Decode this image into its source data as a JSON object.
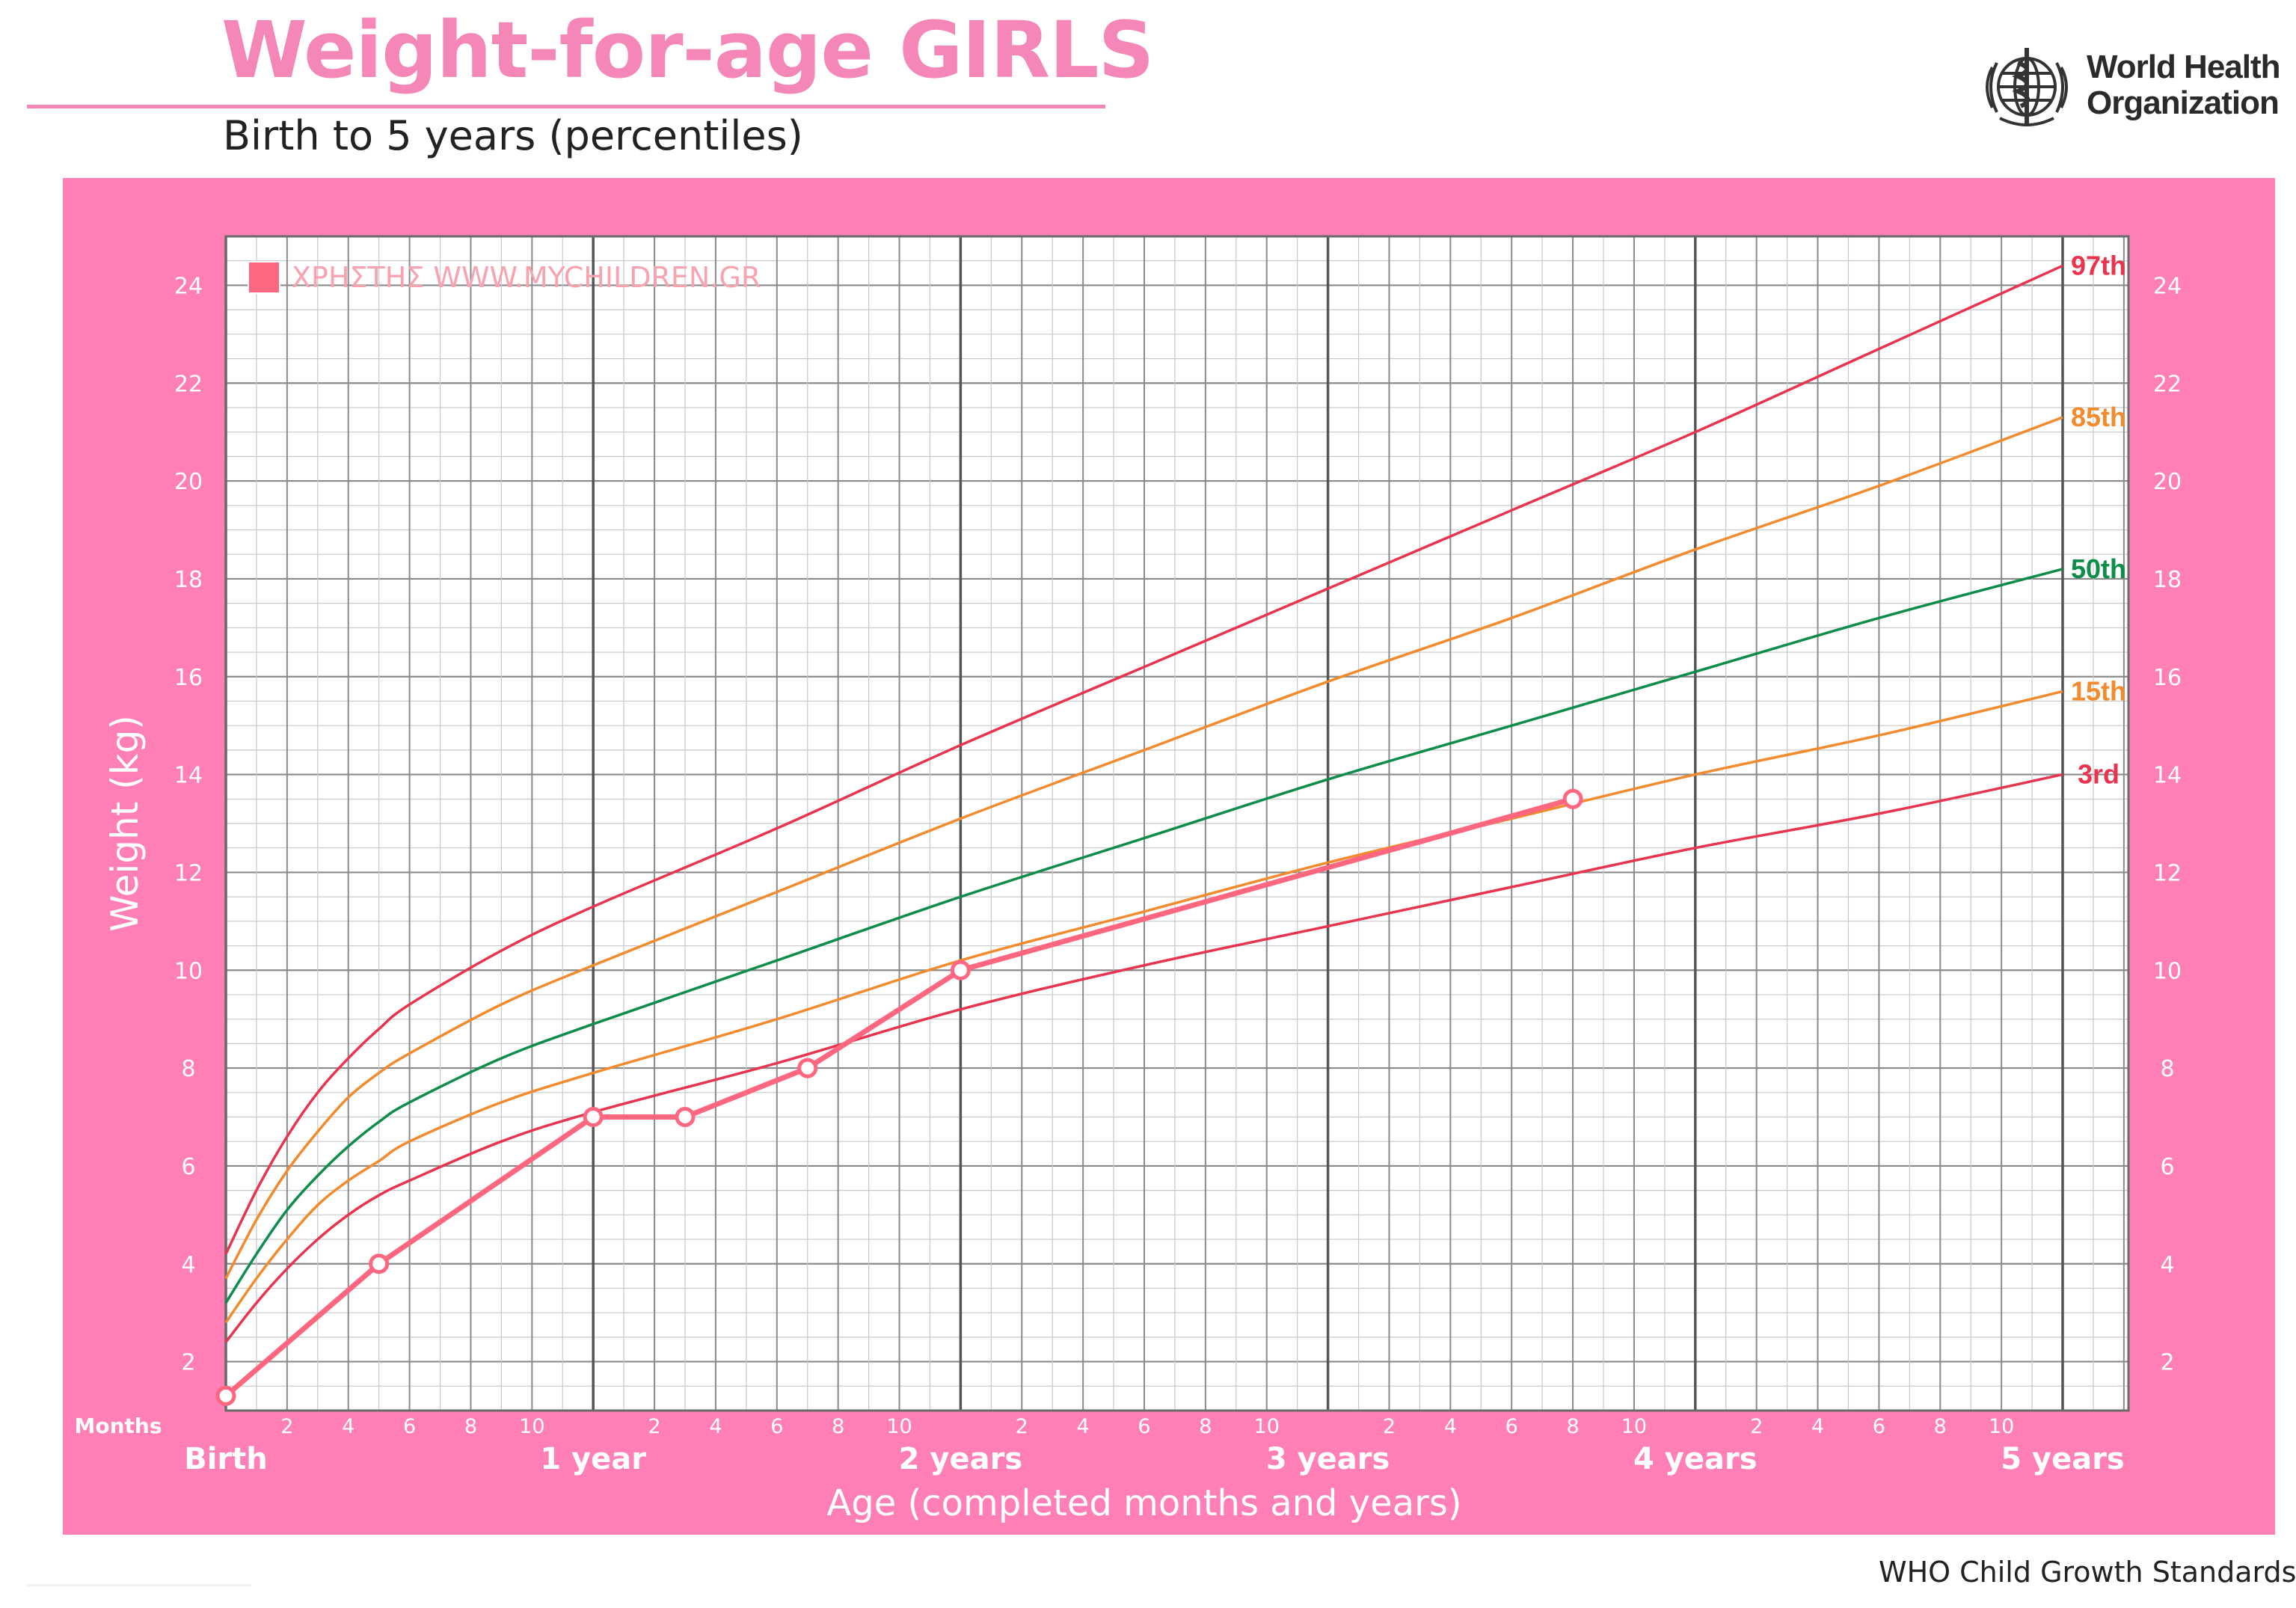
{
  "header": {
    "title": "Weight-for-age GIRLS",
    "subtitle": "Birth to 5 years (percentiles)",
    "org_name_line1": "World Health",
    "org_name_line2": "Organization",
    "logo_icon": "who-emblem-icon"
  },
  "footer": {
    "text": "WHO Child Growth Standards"
  },
  "colors": {
    "brand_pink": "#ff7fb6",
    "title_pink": "#f587b8",
    "p97": "#e8344f",
    "p85": "#f28a2e",
    "p50": "#0e8c4a",
    "p15": "#f28a2e",
    "p3": "#e8344f",
    "child": "#ff6680"
  },
  "chart_data": {
    "type": "line",
    "title": "Weight-for-age GIRLS",
    "subtitle": "Birth to 5 years (percentiles)",
    "xlabel": "Age (completed months and years)",
    "ylabel": "Weight (kg)",
    "xlim": [
      0,
      60
    ],
    "ylim": [
      1,
      25
    ],
    "y_ticks": [
      2,
      4,
      6,
      8,
      10,
      12,
      14,
      16,
      18,
      20,
      22,
      24
    ],
    "x_major_labels": [
      {
        "month": 0,
        "label": "Birth"
      },
      {
        "month": 12,
        "label": "1 year"
      },
      {
        "month": 24,
        "label": "2 years"
      },
      {
        "month": 36,
        "label": "3 years"
      },
      {
        "month": 48,
        "label": "4 years"
      },
      {
        "month": 60,
        "label": "5 years"
      }
    ],
    "x_minor_tick_values": [
      "2",
      "4",
      "6",
      "8",
      "10"
    ],
    "x_axis_unit_label": "Months",
    "grid": true,
    "legend": {
      "position": "top-left",
      "entries": [
        {
          "label": "ΧΡΗΣΤΗΣ WWW.MYCHILDREN.GR",
          "color": "#ff6680"
        }
      ]
    },
    "series": [
      {
        "name": "97th",
        "color": "#e8344f",
        "x": [
          0,
          1,
          2,
          3,
          4,
          5,
          6,
          9,
          12,
          18,
          24,
          30,
          36,
          42,
          48,
          54,
          60
        ],
        "values": [
          4.2,
          5.5,
          6.6,
          7.5,
          8.2,
          8.8,
          9.3,
          10.4,
          11.3,
          12.9,
          14.6,
          16.2,
          17.8,
          19.4,
          21.0,
          22.7,
          24.4
        ]
      },
      {
        "name": "85th",
        "color": "#f28a2e",
        "x": [
          0,
          1,
          2,
          3,
          4,
          5,
          6,
          9,
          12,
          18,
          24,
          30,
          36,
          42,
          48,
          54,
          60
        ],
        "values": [
          3.7,
          4.9,
          5.9,
          6.7,
          7.4,
          7.9,
          8.3,
          9.3,
          10.1,
          11.6,
          13.1,
          14.5,
          15.9,
          17.2,
          18.6,
          19.9,
          21.3
        ]
      },
      {
        "name": "50th",
        "color": "#0e8c4a",
        "x": [
          0,
          1,
          2,
          3,
          4,
          5,
          6,
          9,
          12,
          18,
          24,
          30,
          36,
          42,
          48,
          54,
          60
        ],
        "values": [
          3.2,
          4.2,
          5.1,
          5.8,
          6.4,
          6.9,
          7.3,
          8.2,
          8.9,
          10.2,
          11.5,
          12.7,
          13.9,
          15.0,
          16.1,
          17.2,
          18.2
        ]
      },
      {
        "name": "15th",
        "color": "#f28a2e",
        "x": [
          0,
          1,
          2,
          3,
          4,
          5,
          6,
          9,
          12,
          18,
          24,
          30,
          36,
          42,
          48,
          54,
          60
        ],
        "values": [
          2.8,
          3.7,
          4.5,
          5.2,
          5.7,
          6.1,
          6.5,
          7.3,
          7.9,
          9.0,
          10.2,
          11.2,
          12.2,
          13.1,
          14.0,
          14.8,
          15.7
        ]
      },
      {
        "name": "3rd",
        "color": "#e8344f",
        "x": [
          0,
          1,
          2,
          3,
          4,
          5,
          6,
          9,
          12,
          18,
          24,
          30,
          36,
          42,
          48,
          54,
          60
        ],
        "values": [
          2.4,
          3.2,
          3.9,
          4.5,
          5.0,
          5.4,
          5.7,
          6.5,
          7.1,
          8.1,
          9.2,
          10.1,
          10.9,
          11.7,
          12.5,
          13.2,
          14.0
        ]
      },
      {
        "name": "ΧΡΗΣΤΗΣ WWW.MYCHILDREN.GR",
        "color": "#ff6680",
        "markers": true,
        "x": [
          0,
          5,
          12,
          15,
          19,
          24,
          44
        ],
        "values": [
          1.3,
          4.0,
          7.0,
          7.0,
          8.0,
          10.0,
          13.5
        ]
      }
    ]
  }
}
